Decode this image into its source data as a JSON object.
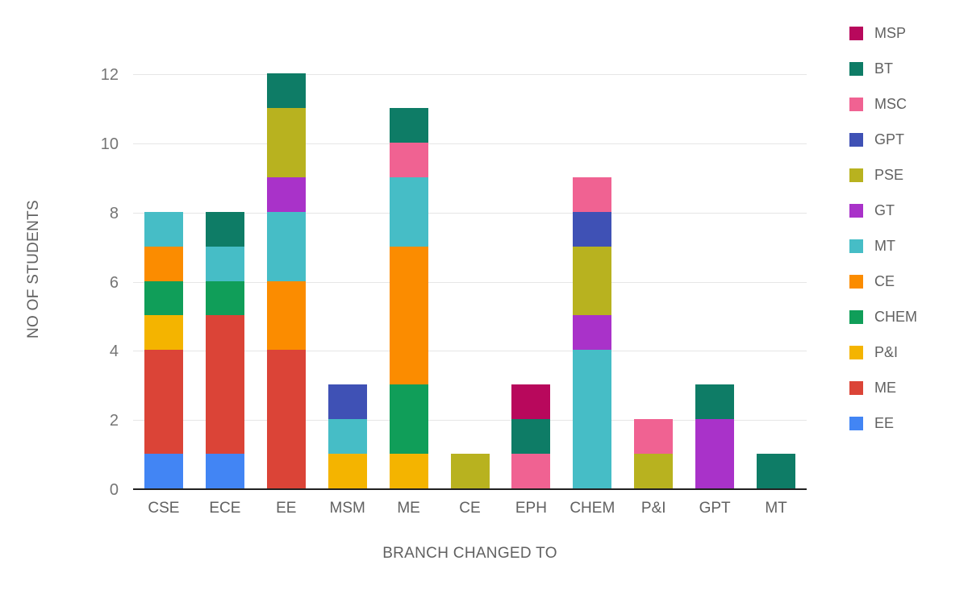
{
  "chart_data": {
    "type": "bar",
    "stacked": true,
    "title": "",
    "xlabel": "BRANCH CHANGED TO",
    "ylabel": "NO OF STUDENTS",
    "categories": [
      "CSE",
      "ECE",
      "EE",
      "MSM",
      "ME",
      "CE",
      "EPH",
      "CHEM",
      "P&I",
      "GPT",
      "MT"
    ],
    "yticks": [
      0,
      2,
      4,
      6,
      8,
      10,
      12
    ],
    "ylim": [
      0,
      12
    ],
    "grid": true,
    "legend_position": "right",
    "legend_order": [
      "MSP",
      "BT",
      "MSC",
      "GPT",
      "PSE",
      "GT",
      "MT",
      "CE",
      "CHEM",
      "P&I",
      "ME",
      "EE"
    ],
    "series": [
      {
        "name": "EE",
        "color": "#4285f4",
        "values": [
          1,
          1,
          0,
          0,
          0,
          0,
          0,
          0,
          0,
          0,
          0
        ]
      },
      {
        "name": "ME",
        "color": "#db4437",
        "values": [
          3,
          4,
          4,
          0,
          0,
          0,
          0,
          0,
          0,
          0,
          0
        ]
      },
      {
        "name": "P&I",
        "color": "#f4b400",
        "values": [
          1,
          0,
          0,
          1,
          1,
          0,
          0,
          0,
          0,
          0,
          0
        ]
      },
      {
        "name": "CHEM",
        "color": "#109e59",
        "values": [
          1,
          1,
          0,
          0,
          2,
          0,
          0,
          0,
          0,
          0,
          0
        ]
      },
      {
        "name": "CE",
        "color": "#fb8c00",
        "values": [
          1,
          0,
          2,
          0,
          4,
          0,
          0,
          0,
          0,
          0,
          0
        ]
      },
      {
        "name": "MT",
        "color": "#46bdc6",
        "values": [
          1,
          1,
          2,
          1,
          2,
          0,
          0,
          4,
          0,
          0,
          0
        ]
      },
      {
        "name": "GT",
        "color": "#a932c9",
        "values": [
          0,
          0,
          1,
          0,
          0,
          0,
          0,
          1,
          0,
          2,
          0
        ]
      },
      {
        "name": "PSE",
        "color": "#b8b21f",
        "values": [
          0,
          0,
          2,
          0,
          0,
          1,
          0,
          2,
          1,
          0,
          0
        ]
      },
      {
        "name": "GPT",
        "color": "#3f51b5",
        "values": [
          0,
          0,
          0,
          1,
          0,
          0,
          0,
          1,
          0,
          0,
          0
        ]
      },
      {
        "name": "MSC",
        "color": "#f06292",
        "values": [
          0,
          0,
          0,
          0,
          1,
          0,
          1,
          1,
          1,
          0,
          0
        ]
      },
      {
        "name": "BT",
        "color": "#0e7c66",
        "values": [
          0,
          1,
          1,
          0,
          1,
          0,
          1,
          0,
          0,
          1,
          1
        ]
      },
      {
        "name": "MSP",
        "color": "#b8085c",
        "values": [
          0,
          0,
          0,
          0,
          0,
          0,
          1,
          0,
          0,
          0,
          0
        ]
      }
    ]
  },
  "styles": {
    "background": "#ffffff",
    "gridline_color": "#e6e6e6",
    "axis_line_color": "#212121",
    "tick_label_color": "#757575",
    "category_label_color": "#616161",
    "axis_title_color": "#616161",
    "legend_label_color": "#616161"
  }
}
